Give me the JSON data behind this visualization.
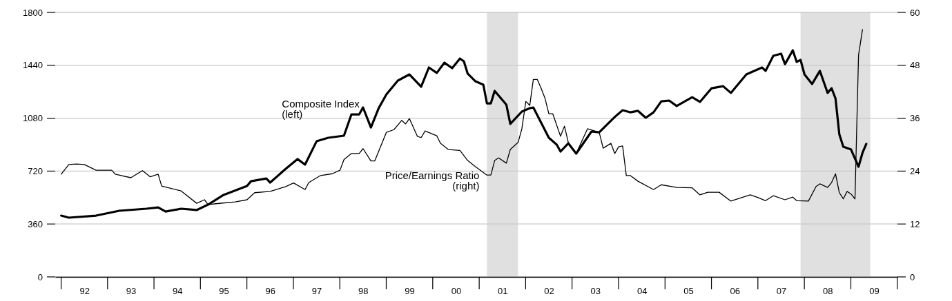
{
  "chart_data": {
    "type": "line",
    "xlim": [
      "1991-11-15",
      "2010-01"
    ],
    "xticks": [
      {
        "value": "1992-07",
        "label": "92"
      },
      {
        "value": "1993-07",
        "label": "93"
      },
      {
        "value": "1994-07",
        "label": "94"
      },
      {
        "value": "1995-07",
        "label": "95"
      },
      {
        "value": "1996-07",
        "label": "96"
      },
      {
        "value": "1997-07",
        "label": "97"
      },
      {
        "value": "1998-07",
        "label": "98"
      },
      {
        "value": "1999-07",
        "label": "99"
      },
      {
        "value": "2000-07",
        "label": "00"
      },
      {
        "value": "2001-07",
        "label": "01"
      },
      {
        "value": "2002-07",
        "label": "02"
      },
      {
        "value": "2003-07",
        "label": "03"
      },
      {
        "value": "2004-07",
        "label": "04"
      },
      {
        "value": "2005-07",
        "label": "05"
      },
      {
        "value": "2006-07",
        "label": "06"
      },
      {
        "value": "2007-07",
        "label": "07"
      },
      {
        "value": "2008-07",
        "label": "08"
      },
      {
        "value": "2009-07",
        "label": "09"
      }
    ],
    "ylim": [
      0,
      1800
    ],
    "yticks": [
      0,
      360,
      720,
      1080,
      1440,
      1800
    ],
    "y2lim": [
      0,
      60
    ],
    "y2ticks": [
      0,
      12,
      24,
      36,
      48,
      60
    ],
    "grid": "y",
    "line_style": "solid",
    "marker": "none",
    "bands": [
      {
        "axis": "x",
        "from": "2001-03",
        "to": "2001-11",
        "color": "#e0e0e0"
      },
      {
        "axis": "x",
        "from": "2007-12",
        "to": "2009-06",
        "color": "#e0e0e0"
      }
    ],
    "series": [
      {
        "name": "Composite Index\n(left)",
        "color": "#000000",
        "axis": "y",
        "x": [
          "1992-01",
          "1992-03",
          "1992-10",
          "1993-04",
          "1993-11",
          "1994-02",
          "1994-04",
          "1994-08",
          "1994-12",
          "1995-03",
          "1995-07",
          "1996-01",
          "1996-02",
          "1996-06",
          "1996-07",
          "1996-11",
          "1997-02",
          "1997-04",
          "1997-07",
          "1997-10",
          "1998-02",
          "1998-04",
          "1998-06",
          "1998-07",
          "1998-09",
          "1998-11",
          "1999-01",
          "1999-04",
          "1999-07",
          "1999-10",
          "1999-12",
          "2000-02",
          "2000-04",
          "2000-06",
          "2000-08",
          "2000-09",
          "2000-10",
          "2000-12",
          "2001-02",
          "2001-03",
          "2001-04",
          "2001-05",
          "2001-08",
          "2001-09",
          "2001-12",
          "2002-02",
          "2002-03",
          "2002-07",
          "2002-09",
          "2002-10",
          "2002-12",
          "2003-02",
          "2003-06",
          "2003-08",
          "2003-12",
          "2004-02",
          "2004-04",
          "2004-06",
          "2004-08",
          "2004-10",
          "2004-12",
          "2005-02",
          "2005-04",
          "2005-08",
          "2005-10",
          "2006-01",
          "2006-04",
          "2006-06",
          "2006-10",
          "2007-02",
          "2007-03",
          "2007-05",
          "2007-07",
          "2007-08",
          "2007-10",
          "2007-11",
          "2007-12",
          "2008-01",
          "2008-03",
          "2008-05",
          "2008-07",
          "2008-08",
          "2008-09",
          "2008-10",
          "2008-11",
          "2009-01",
          "2009-03",
          "2009-04",
          "2009-05"
        ],
        "values": [
          417,
          403,
          417,
          450,
          464,
          473,
          445,
          464,
          455,
          492,
          558,
          619,
          651,
          670,
          642,
          736,
          802,
          764,
          923,
          947,
          961,
          1106,
          1106,
          1153,
          1017,
          1148,
          1242,
          1336,
          1378,
          1294,
          1425,
          1388,
          1458,
          1420,
          1486,
          1467,
          1383,
          1331,
          1308,
          1181,
          1181,
          1266,
          1172,
          1041,
          1125,
          1148,
          1153,
          947,
          900,
          853,
          909,
          839,
          989,
          984,
          1088,
          1134,
          1120,
          1130,
          1083,
          1120,
          1195,
          1200,
          1163,
          1223,
          1191,
          1284,
          1298,
          1252,
          1378,
          1425,
          1402,
          1505,
          1519,
          1448,
          1542,
          1463,
          1477,
          1378,
          1313,
          1402,
          1252,
          1284,
          1214,
          970,
          886,
          867,
          750,
          844,
          905
        ]
      },
      {
        "name": "Price/Earnings Ratio\n(right)",
        "color": "#000000",
        "axis": "y2",
        "x": [
          "1992-01",
          "1992-03",
          "1992-05",
          "1992-07",
          "1992-10",
          "1993-02",
          "1993-03",
          "1993-07",
          "1993-10",
          "1993-12",
          "1994-02",
          "1994-03",
          "1994-08",
          "1994-12",
          "1995-02",
          "1995-03",
          "1995-05",
          "1995-10",
          "1996-01",
          "1996-03",
          "1996-07",
          "1996-11",
          "1997-01",
          "1997-04",
          "1997-05",
          "1997-08",
          "1997-11",
          "1998-01",
          "1998-02",
          "1998-04",
          "1998-06",
          "1998-07",
          "1998-09",
          "1998-10",
          "1999-01",
          "1999-03",
          "1999-05",
          "1999-06",
          "1999-07",
          "1999-09",
          "1999-10",
          "1999-11",
          "2000-02",
          "2000-03",
          "2000-05",
          "2000-08",
          "2000-10",
          "2000-12",
          "2001-03",
          "2001-04",
          "2001-05",
          "2001-06",
          "2001-08",
          "2001-09",
          "2001-11",
          "2001-12",
          "2002-01",
          "2002-02",
          "2002-03",
          "2002-04",
          "2002-05",
          "2002-06",
          "2002-07",
          "2002-08",
          "2002-10",
          "2002-11",
          "2002-12",
          "2003-02",
          "2003-05",
          "2003-08",
          "2003-09",
          "2003-11",
          "2003-12",
          "2004-01",
          "2004-02",
          "2004-03",
          "2004-04",
          "2004-06",
          "2004-10",
          "2004-12",
          "2005-04",
          "2005-08",
          "2005-10",
          "2005-12",
          "2006-03",
          "2006-06",
          "2006-11",
          "2007-01",
          "2007-03",
          "2007-05",
          "2007-08",
          "2007-10",
          "2007-11",
          "2008-02",
          "2008-04",
          "2008-05",
          "2008-07",
          "2008-08",
          "2008-09",
          "2008-10",
          "2008-11",
          "2008-12",
          "2009-01",
          "2009-02",
          "2009-03",
          "2009-04"
        ],
        "values": [
          23.3,
          25.5,
          25.6,
          25.5,
          24.2,
          24.2,
          23.3,
          22.5,
          24.1,
          22.7,
          23.3,
          20.6,
          19.5,
          16.7,
          17.5,
          16.4,
          16.6,
          17.0,
          17.5,
          19.1,
          19.4,
          20.5,
          21.3,
          19.8,
          21.4,
          23.0,
          23.4,
          24.2,
          26.6,
          28.0,
          28.0,
          29.1,
          26.3,
          26.3,
          32.8,
          33.4,
          35.5,
          34.7,
          35.9,
          31.9,
          31.6,
          33.1,
          32.0,
          30.3,
          28.9,
          28.7,
          26.4,
          25.0,
          23.1,
          23.1,
          26.4,
          27.0,
          25.8,
          28.9,
          30.5,
          33.6,
          39.8,
          38.9,
          44.8,
          44.8,
          42.8,
          40.5,
          37.0,
          37.0,
          31.9,
          34.2,
          30.5,
          28.0,
          33.6,
          32.8,
          29.2,
          30.3,
          28.0,
          29.5,
          29.7,
          23.0,
          23.0,
          21.7,
          19.8,
          20.9,
          20.3,
          20.2,
          18.6,
          19.2,
          19.2,
          17.2,
          18.6,
          18.0,
          17.3,
          18.4,
          17.5,
          18.1,
          17.3,
          17.2,
          20.5,
          21.1,
          20.3,
          21.4,
          23.4,
          19.1,
          17.7,
          19.4,
          18.8,
          17.7,
          50.3,
          56.1
        ]
      }
    ]
  }
}
